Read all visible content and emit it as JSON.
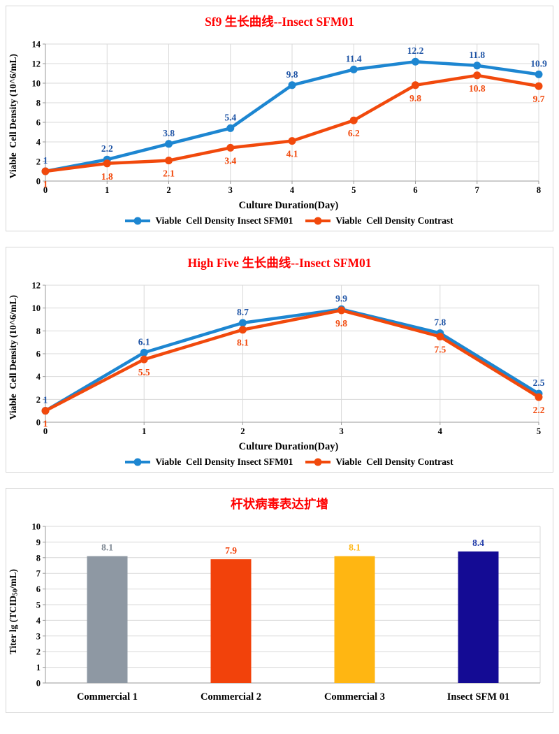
{
  "chart_data": [
    {
      "type": "line",
      "title": "Sf9 生长曲线--Insect SFM01",
      "xlabel": "Culture Duration(Day)",
      "ylabel": "Viable  Cell Density (10^6/mL)",
      "x": [
        0,
        1,
        2,
        3,
        4,
        5,
        6,
        7,
        8
      ],
      "ylim": [
        0,
        14
      ],
      "ytick": 2,
      "grid": true,
      "legend_position": "bottom",
      "series": [
        {
          "name": "Viable  Cell Density Insect SFM01",
          "color": "#1d86d1",
          "label_color": "#1f54a5",
          "values": [
            1,
            2.2,
            3.8,
            5.4,
            9.8,
            11.4,
            12.2,
            11.8,
            10.9
          ]
        },
        {
          "name": "Viable  Cell Density Contrast",
          "color": "#f1490c",
          "label_color": "#f1490c",
          "values": [
            1,
            1.8,
            2.1,
            3.4,
            4.1,
            6.2,
            9.8,
            10.8,
            9.7
          ]
        }
      ]
    },
    {
      "type": "line",
      "title": "High Five 生长曲线--Insect SFM01",
      "xlabel": "Culture Duration(Day)",
      "ylabel": "Viable  Cell Density (10^6/mL)",
      "x": [
        0,
        1,
        2,
        3,
        4,
        5
      ],
      "ylim": [
        0,
        12
      ],
      "ytick": 2,
      "grid": true,
      "legend_position": "bottom",
      "series": [
        {
          "name": "Viable  Cell Density Insect SFM01",
          "color": "#1d86d1",
          "label_color": "#1f54a5",
          "values": [
            1,
            6.1,
            8.7,
            9.9,
            7.8,
            2.5
          ]
        },
        {
          "name": "Viable  Cell Density Contrast",
          "color": "#f1490c",
          "label_color": "#f1490c",
          "values": [
            1,
            5.5,
            8.1,
            9.8,
            7.5,
            2.2
          ]
        }
      ]
    },
    {
      "type": "bar",
      "title": "杆状病毒表达扩增",
      "ylabel_pre": "Titer lg (TCID",
      "ylabel_sub": "50",
      "ylabel_post": "/mL)",
      "categories": [
        "Commercial 1",
        "Commercial 2",
        "Commercial 3",
        "Insect SFM 01"
      ],
      "values": [
        8.1,
        7.9,
        8.1,
        8.4
      ],
      "bar_colors": [
        "#8e98a3",
        "#f2420b",
        "#ffb612",
        "#140b94"
      ],
      "label_colors": [
        "#7e8893",
        "#f2420b",
        "#ffb612",
        "#203aa8"
      ],
      "ylim": [
        0,
        10
      ],
      "ytick": 1,
      "grid": true
    }
  ],
  "style_colors": {
    "title_red": "#ff0000",
    "gridline": "#d9d9d9",
    "axis": "#9a9a9a",
    "panel_border": "#d6d6d6"
  }
}
